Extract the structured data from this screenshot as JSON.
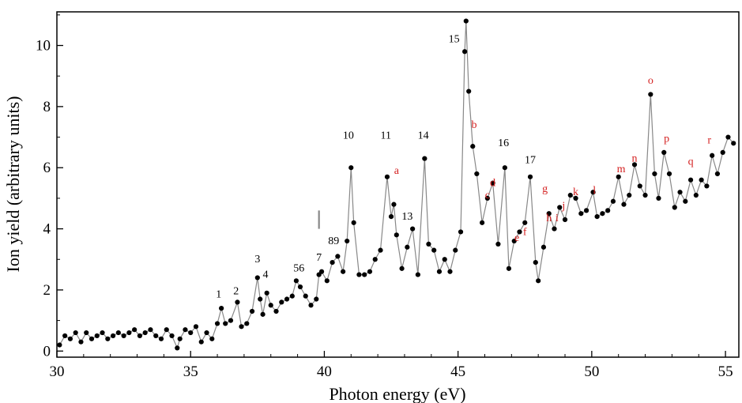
{
  "chart_data": {
    "type": "line",
    "xlabel": "Photon energy (eV)",
    "ylabel": "Ion yield (arbitrary units)",
    "xlim": [
      30,
      55.5
    ],
    "ylim": [
      -0.2,
      11.1
    ],
    "x_ticks": [
      30,
      35,
      40,
      45,
      50,
      55
    ],
    "y_ticks": [
      0,
      2,
      4,
      6,
      8,
      10
    ],
    "grid": false,
    "legend": "none",
    "line_color": "#888888",
    "marker_color": "#000000",
    "colors": {
      "numbered_label": "#000000",
      "lettered_label": "#d42020"
    },
    "marker": {
      "x": 39.8,
      "y_range": [
        4.0,
        4.6
      ],
      "color": "#888888"
    },
    "series": [
      {
        "x": [
          30.1,
          30.3,
          30.5,
          30.7,
          30.9,
          31.1,
          31.3,
          31.5,
          31.7,
          31.9,
          32.1,
          32.3,
          32.5,
          32.7,
          32.9,
          33.1,
          33.3,
          33.5,
          33.7,
          33.9,
          34.1,
          34.3,
          34.5,
          34.6,
          34.8,
          35.0,
          35.2,
          35.4,
          35.6,
          35.8,
          36.0,
          36.15,
          36.3,
          36.5,
          36.75,
          36.9,
          37.1,
          37.3,
          37.5,
          37.6,
          37.7,
          37.85,
          38.0,
          38.2,
          38.4,
          38.6,
          38.8,
          38.95,
          39.1,
          39.3,
          39.5,
          39.7,
          39.8,
          39.9,
          40.1,
          40.3,
          40.5,
          40.7,
          40.85,
          41.0,
          41.1,
          41.3,
          41.5,
          41.7,
          41.9,
          42.1,
          42.35,
          42.5,
          42.6,
          42.7,
          42.9,
          43.1,
          43.3,
          43.5,
          43.75,
          43.9,
          44.1,
          44.3,
          44.5,
          44.7,
          44.9,
          45.1,
          45.25,
          45.3,
          45.4,
          45.55,
          45.7,
          45.9,
          46.1,
          46.3,
          46.5,
          46.75,
          46.9,
          47.1,
          47.3,
          47.5,
          47.7,
          47.9,
          48.0,
          48.2,
          48.4,
          48.6,
          48.8,
          49.0,
          49.2,
          49.4,
          49.6,
          49.8,
          50.05,
          50.2,
          50.4,
          50.6,
          50.8,
          51.0,
          51.2,
          51.4,
          51.6,
          51.8,
          52.0,
          52.2,
          52.35,
          52.5,
          52.7,
          52.9,
          53.1,
          53.3,
          53.5,
          53.7,
          53.9,
          54.1,
          54.3,
          54.5,
          54.7,
          54.9,
          55.1,
          55.3
        ],
        "values": [
          0.2,
          0.5,
          0.4,
          0.6,
          0.3,
          0.6,
          0.4,
          0.5,
          0.6,
          0.4,
          0.5,
          0.6,
          0.5,
          0.6,
          0.7,
          0.5,
          0.6,
          0.7,
          0.5,
          0.4,
          0.7,
          0.5,
          0.1,
          0.4,
          0.7,
          0.6,
          0.8,
          0.3,
          0.6,
          0.4,
          0.9,
          1.4,
          0.9,
          1.0,
          1.6,
          0.8,
          0.9,
          1.3,
          2.4,
          1.7,
          1.2,
          1.9,
          1.5,
          1.3,
          1.6,
          1.7,
          1.8,
          2.3,
          2.1,
          1.8,
          1.5,
          1.7,
          2.5,
          2.6,
          2.3,
          2.9,
          3.1,
          2.6,
          3.6,
          6.0,
          4.2,
          2.5,
          2.5,
          2.6,
          3.0,
          3.3,
          5.7,
          4.4,
          4.8,
          3.8,
          2.7,
          3.4,
          4.0,
          2.5,
          6.3,
          3.5,
          3.3,
          2.6,
          3.0,
          2.6,
          3.3,
          3.9,
          9.8,
          10.8,
          8.5,
          6.7,
          5.8,
          4.2,
          5.0,
          5.5,
          3.5,
          6.0,
          2.7,
          3.6,
          3.9,
          4.2,
          5.7,
          2.9,
          2.3,
          3.4,
          4.5,
          4.0,
          4.7,
          4.3,
          5.1,
          5.0,
          4.5,
          4.6,
          5.2,
          4.4,
          4.5,
          4.6,
          4.9,
          5.7,
          4.8,
          5.1,
          6.1,
          5.4,
          5.1,
          8.4,
          5.8,
          5.0,
          6.5,
          5.8,
          4.7,
          5.2,
          4.9,
          5.6,
          5.1,
          5.6,
          5.4,
          6.4,
          5.8,
          6.5,
          7.0,
          6.8
        ]
      }
    ],
    "annotations": [
      {
        "text": "1",
        "x": 36.05,
        "y": 1.75,
        "kind": "number"
      },
      {
        "text": "2",
        "x": 36.7,
        "y": 1.85,
        "kind": "number"
      },
      {
        "text": "3",
        "x": 37.5,
        "y": 2.9,
        "kind": "number"
      },
      {
        "text": "4",
        "x": 37.8,
        "y": 2.4,
        "kind": "number"
      },
      {
        "text": "56",
        "x": 39.05,
        "y": 2.6,
        "kind": "number"
      },
      {
        "text": "7",
        "x": 39.8,
        "y": 2.95,
        "kind": "number"
      },
      {
        "text": "89",
        "x": 40.35,
        "y": 3.5,
        "kind": "number"
      },
      {
        "text": "10",
        "x": 40.9,
        "y": 6.95,
        "kind": "number"
      },
      {
        "text": "11",
        "x": 42.3,
        "y": 6.95,
        "kind": "number"
      },
      {
        "text": "13",
        "x": 43.1,
        "y": 4.3,
        "kind": "number"
      },
      {
        "text": "14",
        "x": 43.7,
        "y": 6.95,
        "kind": "number"
      },
      {
        "text": "15",
        "x": 44.85,
        "y": 10.1,
        "kind": "number"
      },
      {
        "text": "16",
        "x": 46.7,
        "y": 6.7,
        "kind": "number"
      },
      {
        "text": "17",
        "x": 47.7,
        "y": 6.15,
        "kind": "number"
      },
      {
        "text": "a",
        "x": 42.7,
        "y": 5.8,
        "kind": "letter"
      },
      {
        "text": "b",
        "x": 45.6,
        "y": 7.3,
        "kind": "letter"
      },
      {
        "text": "c",
        "x": 46.1,
        "y": 5.0,
        "kind": "letter"
      },
      {
        "text": "d",
        "x": 46.3,
        "y": 5.4,
        "kind": "letter"
      },
      {
        "text": "e",
        "x": 47.2,
        "y": 3.6,
        "kind": "letter"
      },
      {
        "text": "f",
        "x": 47.5,
        "y": 3.8,
        "kind": "letter"
      },
      {
        "text": "g",
        "x": 48.25,
        "y": 5.2,
        "kind": "letter"
      },
      {
        "text": "h",
        "x": 48.4,
        "y": 4.25,
        "kind": "letter"
      },
      {
        "text": "i",
        "x": 48.7,
        "y": 4.25,
        "kind": "letter"
      },
      {
        "text": "j",
        "x": 48.95,
        "y": 4.65,
        "kind": "letter"
      },
      {
        "text": "k",
        "x": 49.4,
        "y": 5.1,
        "kind": "letter"
      },
      {
        "text": "l",
        "x": 50.1,
        "y": 5.15,
        "kind": "letter"
      },
      {
        "text": "m",
        "x": 51.1,
        "y": 5.85,
        "kind": "letter"
      },
      {
        "text": "n",
        "x": 51.6,
        "y": 6.2,
        "kind": "letter"
      },
      {
        "text": "o",
        "x": 52.2,
        "y": 8.75,
        "kind": "letter"
      },
      {
        "text": "p",
        "x": 52.8,
        "y": 6.85,
        "kind": "letter"
      },
      {
        "text": "q",
        "x": 53.7,
        "y": 6.1,
        "kind": "letter"
      },
      {
        "text": "r",
        "x": 54.4,
        "y": 6.8,
        "kind": "letter"
      }
    ]
  }
}
